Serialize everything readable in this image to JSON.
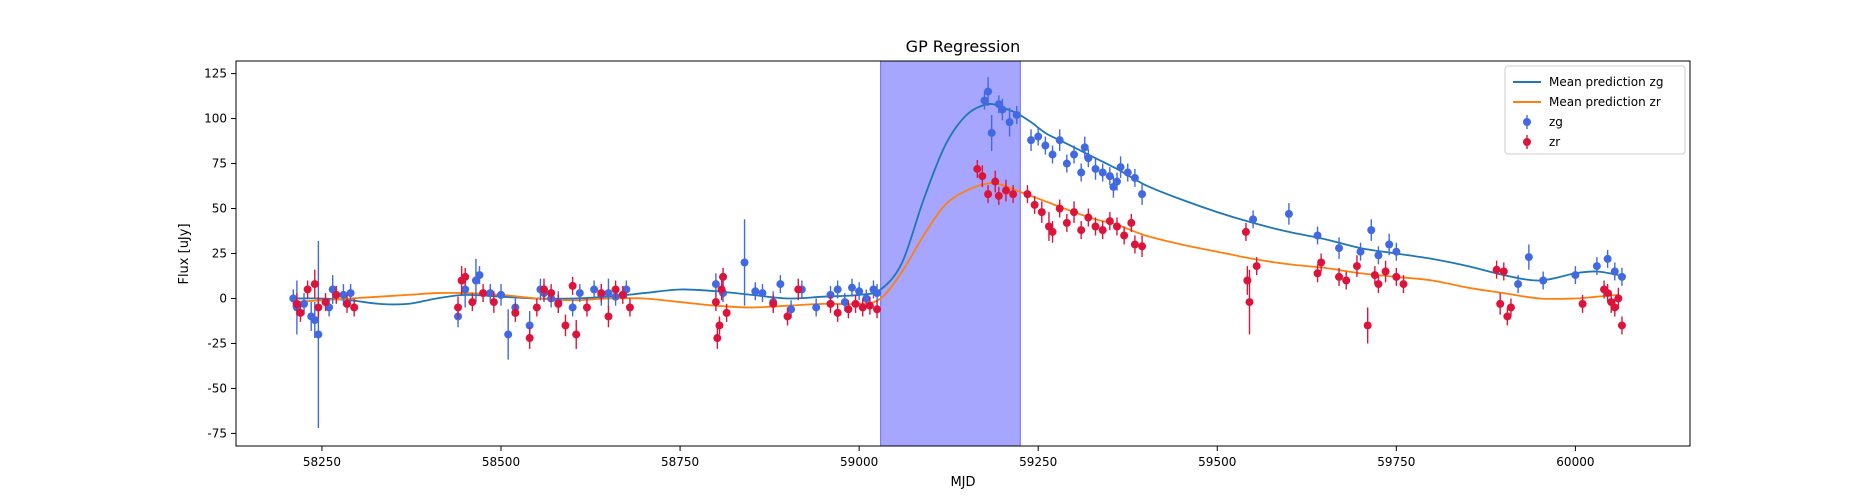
{
  "chart_data": {
    "type": "scatter",
    "title": "GP Regression",
    "xlabel": "MJD",
    "ylabel": "Flux [uJy]",
    "xlim": [
      58130,
      60160
    ],
    "ylim": [
      -82,
      132
    ],
    "xticks": [
      58250,
      58500,
      58750,
      59000,
      59250,
      59500,
      59750,
      60000
    ],
    "yticks": [
      -75,
      -50,
      -25,
      0,
      25,
      50,
      75,
      100,
      125
    ],
    "grid": false,
    "legend_position": "top-right",
    "highlight_band": {
      "x0": 59030,
      "x1": 59225,
      "color": "#a6a6ff"
    },
    "series": [
      {
        "name": "Mean prediction zg",
        "kind": "line",
        "color": "#1f77b4",
        "x": [
          58210,
          58250,
          58290,
          58330,
          58370,
          58410,
          58450,
          58500,
          58550,
          58600,
          58650,
          58700,
          58750,
          58800,
          58850,
          58900,
          58950,
          59000,
          59030,
          59060,
          59090,
          59120,
          59150,
          59180,
          59200,
          59220,
          59240,
          59260,
          59280,
          59300,
          59330,
          59360,
          59400,
          59450,
          59500,
          59550,
          59600,
          59650,
          59700,
          59750,
          59800,
          59850,
          59900,
          59950,
          60000,
          60030,
          60060
        ],
        "y": [
          0,
          0,
          -1,
          -3,
          -3,
          0,
          2,
          1,
          0,
          0,
          1,
          3,
          5,
          4,
          2,
          0,
          1,
          2,
          5,
          20,
          55,
          85,
          102,
          108,
          106,
          103,
          98,
          92,
          88,
          84,
          78,
          72,
          63,
          55,
          48,
          42,
          37,
          33,
          28,
          25,
          22,
          18,
          13,
          10,
          14,
          15,
          13
        ]
      },
      {
        "name": "Mean prediction zr",
        "kind": "line",
        "color": "#ff7f0e",
        "x": [
          58210,
          58250,
          58290,
          58330,
          58370,
          58410,
          58450,
          58500,
          58550,
          58600,
          58650,
          58700,
          58750,
          58800,
          58850,
          58900,
          58950,
          59000,
          59030,
          59060,
          59090,
          59120,
          59150,
          59180,
          59200,
          59220,
          59240,
          59260,
          59280,
          59300,
          59330,
          59360,
          59400,
          59450,
          59500,
          59550,
          59600,
          59650,
          59700,
          59750,
          59800,
          59850,
          59900,
          59950,
          60000,
          60030,
          60060
        ],
        "y": [
          -2,
          -1,
          0,
          1,
          2,
          3,
          3,
          2,
          0,
          -1,
          0,
          0,
          -2,
          -4,
          -5,
          -4,
          -3,
          -3,
          0,
          15,
          35,
          52,
          60,
          64,
          63,
          60,
          57,
          54,
          51,
          48,
          44,
          41,
          35,
          30,
          26,
          22,
          19,
          17,
          14,
          12,
          10,
          6,
          3,
          0,
          0,
          1,
          2
        ]
      },
      {
        "name": "zg",
        "kind": "errorbar",
        "color": "#4169e1",
        "points": [
          [
            58210,
            0,
            5
          ],
          [
            58215,
            -5,
            15
          ],
          [
            58225,
            -3,
            6
          ],
          [
            58235,
            -10,
            8
          ],
          [
            58240,
            -12,
            10
          ],
          [
            58245,
            -20,
            52
          ],
          [
            58260,
            -5,
            5
          ],
          [
            58265,
            5,
            8
          ],
          [
            58280,
            2,
            6
          ],
          [
            58290,
            3,
            5
          ],
          [
            58440,
            -10,
            6
          ],
          [
            58450,
            5,
            10
          ],
          [
            58465,
            10,
            12
          ],
          [
            58470,
            13,
            5
          ],
          [
            58485,
            3,
            5
          ],
          [
            58500,
            2,
            6
          ],
          [
            58510,
            -20,
            14
          ],
          [
            58520,
            -5,
            5
          ],
          [
            58540,
            -15,
            8
          ],
          [
            58555,
            5,
            6
          ],
          [
            58560,
            3,
            5
          ],
          [
            58570,
            0,
            5
          ],
          [
            58580,
            -2,
            6
          ],
          [
            58600,
            -5,
            5
          ],
          [
            58610,
            3,
            5
          ],
          [
            58630,
            5,
            5
          ],
          [
            58640,
            2,
            6
          ],
          [
            58650,
            3,
            8
          ],
          [
            58660,
            1,
            5
          ],
          [
            58675,
            5,
            5
          ],
          [
            58800,
            8,
            6
          ],
          [
            58810,
            3,
            5
          ],
          [
            58840,
            20,
            24
          ],
          [
            58855,
            4,
            5
          ],
          [
            58865,
            3,
            5
          ],
          [
            58880,
            -2,
            6
          ],
          [
            58890,
            8,
            5
          ],
          [
            58905,
            -6,
            5
          ],
          [
            58920,
            5,
            5
          ],
          [
            58940,
            -5,
            5
          ],
          [
            58960,
            2,
            5
          ],
          [
            58970,
            5,
            5
          ],
          [
            58980,
            -2,
            5
          ],
          [
            58990,
            6,
            5
          ],
          [
            59000,
            4,
            5
          ],
          [
            59010,
            0,
            5
          ],
          [
            59020,
            5,
            5
          ],
          [
            59025,
            3,
            5
          ],
          [
            59175,
            110,
            5
          ],
          [
            59180,
            115,
            8
          ],
          [
            59185,
            92,
            10
          ],
          [
            59195,
            108,
            5
          ],
          [
            59200,
            105,
            6
          ],
          [
            59210,
            98,
            8
          ],
          [
            59220,
            102,
            5
          ],
          [
            59240,
            88,
            6
          ],
          [
            59250,
            90,
            5
          ],
          [
            59260,
            85,
            5
          ],
          [
            59270,
            80,
            5
          ],
          [
            59280,
            88,
            6
          ],
          [
            59290,
            75,
            5
          ],
          [
            59300,
            80,
            5
          ],
          [
            59310,
            70,
            5
          ],
          [
            59315,
            84,
            6
          ],
          [
            59320,
            78,
            5
          ],
          [
            59330,
            72,
            6
          ],
          [
            59340,
            70,
            5
          ],
          [
            59350,
            68,
            5
          ],
          [
            59355,
            62,
            6
          ],
          [
            59360,
            65,
            5
          ],
          [
            59365,
            73,
            6
          ],
          [
            59375,
            70,
            5
          ],
          [
            59385,
            67,
            5
          ],
          [
            59395,
            58,
            6
          ],
          [
            59550,
            44,
            5
          ],
          [
            59600,
            47,
            6
          ],
          [
            59640,
            35,
            5
          ],
          [
            59670,
            28,
            6
          ],
          [
            59700,
            26,
            5
          ],
          [
            59715,
            38,
            6
          ],
          [
            59725,
            24,
            5
          ],
          [
            59740,
            30,
            6
          ],
          [
            59750,
            26,
            5
          ],
          [
            59920,
            8,
            5
          ],
          [
            59935,
            23,
            7
          ],
          [
            59955,
            10,
            5
          ],
          [
            60000,
            13,
            5
          ],
          [
            60030,
            18,
            5
          ],
          [
            60045,
            22,
            5
          ],
          [
            60055,
            15,
            5
          ],
          [
            60065,
            12,
            5
          ]
        ]
      },
      {
        "name": "zr",
        "kind": "errorbar",
        "color": "#dc143c",
        "points": [
          [
            58215,
            -3,
            6
          ],
          [
            58220,
            -8,
            5
          ],
          [
            58230,
            5,
            5
          ],
          [
            58240,
            8,
            8
          ],
          [
            58245,
            -5,
            6
          ],
          [
            58255,
            -2,
            5
          ],
          [
            58270,
            2,
            5
          ],
          [
            58285,
            -3,
            5
          ],
          [
            58295,
            -5,
            5
          ],
          [
            58440,
            -5,
            6
          ],
          [
            58445,
            10,
            8
          ],
          [
            58450,
            12,
            5
          ],
          [
            58460,
            -2,
            5
          ],
          [
            58475,
            3,
            5
          ],
          [
            58490,
            -2,
            6
          ],
          [
            58520,
            -8,
            5
          ],
          [
            58540,
            -22,
            6
          ],
          [
            58550,
            -5,
            5
          ],
          [
            58560,
            5,
            6
          ],
          [
            58570,
            3,
            5
          ],
          [
            58580,
            -3,
            5
          ],
          [
            58590,
            -15,
            6
          ],
          [
            58600,
            7,
            5
          ],
          [
            58605,
            -20,
            8
          ],
          [
            58620,
            -5,
            5
          ],
          [
            58640,
            3,
            5
          ],
          [
            58650,
            -10,
            6
          ],
          [
            58660,
            5,
            5
          ],
          [
            58670,
            2,
            5
          ],
          [
            58680,
            -5,
            5
          ],
          [
            58800,
            -2,
            5
          ],
          [
            58802,
            -22,
            6
          ],
          [
            58805,
            -15,
            5
          ],
          [
            58808,
            5,
            6
          ],
          [
            58810,
            12,
            5
          ],
          [
            58815,
            -8,
            5
          ],
          [
            58880,
            -3,
            5
          ],
          [
            58900,
            -10,
            5
          ],
          [
            58915,
            5,
            6
          ],
          [
            58960,
            -3,
            5
          ],
          [
            58970,
            -8,
            5
          ],
          [
            58985,
            -6,
            5
          ],
          [
            58995,
            -3,
            5
          ],
          [
            59005,
            -5,
            5
          ],
          [
            59015,
            -4,
            5
          ],
          [
            59025,
            -6,
            5
          ],
          [
            59165,
            72,
            5
          ],
          [
            59172,
            68,
            6
          ],
          [
            59180,
            58,
            5
          ],
          [
            59190,
            65,
            6
          ],
          [
            59195,
            57,
            5
          ],
          [
            59205,
            60,
            6
          ],
          [
            59215,
            58,
            5
          ],
          [
            59235,
            58,
            5
          ],
          [
            59245,
            52,
            5
          ],
          [
            59255,
            48,
            6
          ],
          [
            59265,
            40,
            8
          ],
          [
            59270,
            37,
            6
          ],
          [
            59280,
            50,
            5
          ],
          [
            59290,
            42,
            5
          ],
          [
            59300,
            48,
            6
          ],
          [
            59310,
            38,
            5
          ],
          [
            59320,
            45,
            5
          ],
          [
            59330,
            40,
            5
          ],
          [
            59340,
            38,
            5
          ],
          [
            59350,
            43,
            5
          ],
          [
            59360,
            40,
            5
          ],
          [
            59370,
            35,
            5
          ],
          [
            59380,
            42,
            5
          ],
          [
            59385,
            30,
            5
          ],
          [
            59395,
            29,
            6
          ],
          [
            59540,
            37,
            5
          ],
          [
            59542,
            10,
            8
          ],
          [
            59545,
            -2,
            18
          ],
          [
            59555,
            18,
            5
          ],
          [
            59640,
            14,
            5
          ],
          [
            59645,
            20,
            5
          ],
          [
            59670,
            12,
            5
          ],
          [
            59680,
            10,
            5
          ],
          [
            59695,
            18,
            6
          ],
          [
            59710,
            -15,
            10
          ],
          [
            59720,
            13,
            5
          ],
          [
            59725,
            8,
            5
          ],
          [
            59735,
            15,
            6
          ],
          [
            59750,
            12,
            5
          ],
          [
            59760,
            8,
            5
          ],
          [
            59890,
            16,
            5
          ],
          [
            59895,
            -3,
            6
          ],
          [
            59900,
            15,
            5
          ],
          [
            59905,
            -10,
            5
          ],
          [
            59910,
            -5,
            5
          ],
          [
            60010,
            -3,
            5
          ],
          [
            60040,
            5,
            5
          ],
          [
            60045,
            3,
            5
          ],
          [
            60050,
            -2,
            6
          ],
          [
            60055,
            -5,
            5
          ],
          [
            60060,
            0,
            6
          ],
          [
            60065,
            -15,
            5
          ]
        ]
      }
    ]
  }
}
